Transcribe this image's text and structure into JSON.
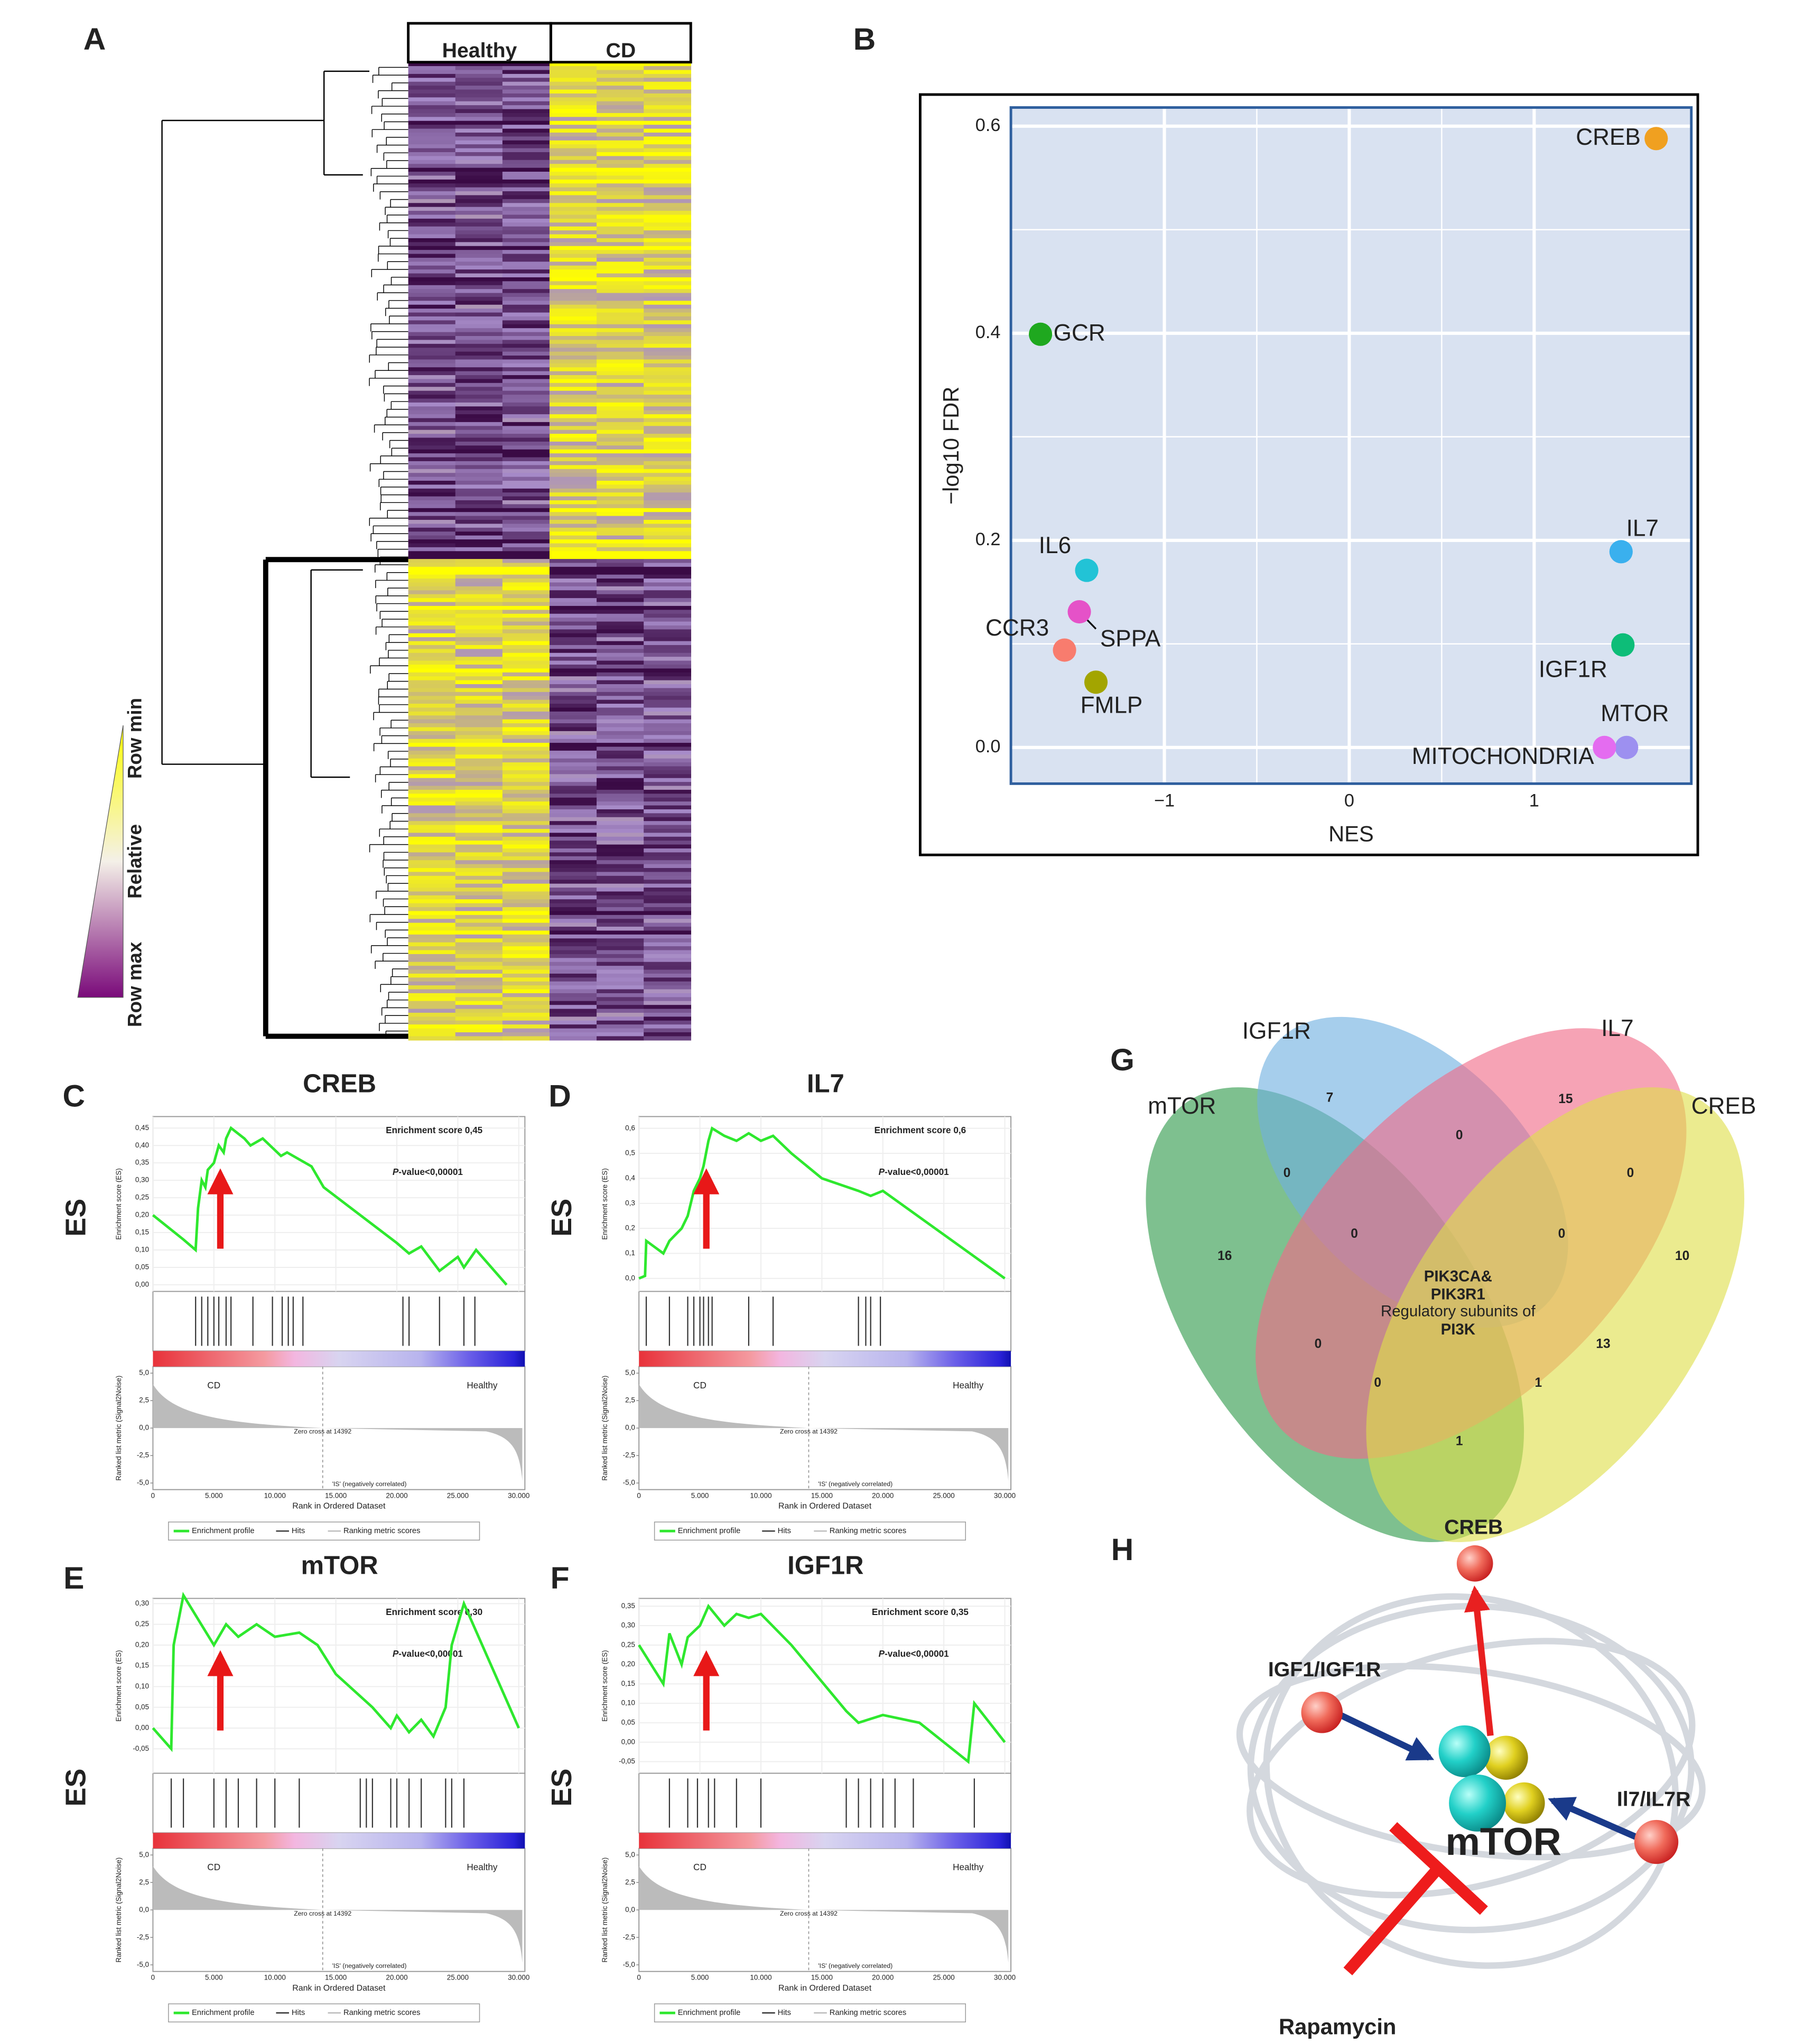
{
  "chart_data": [
    {
      "type": "heatmap",
      "panel": "A",
      "columns": [
        "Healthy",
        "CD"
      ],
      "legend": [
        "Row min",
        "Relative",
        "Row max"
      ]
    },
    {
      "type": "scatter",
      "panel": "B",
      "x_label": "NES",
      "y_label": "−log10 FDR",
      "xlim": [
        -1.83,
        1.85
      ],
      "ylim": [
        -0.035,
        0.618
      ],
      "xticks": [
        {
          "value": -1,
          "label": "−1"
        },
        0,
        1
      ],
      "yticks": [
        {
          "value": 0,
          "label": "0.0"
        },
        0.2,
        0.4,
        0.6
      ],
      "grid": true,
      "labels": [
        "CREB",
        "GCR",
        "IL6",
        "SPPA",
        "CCR3",
        "FMLP",
        "IL7",
        "IGF1R",
        "MTOR",
        "MITOCHONDRIA"
      ],
      "x": [
        1.66,
        -1.67,
        -1.42,
        -1.46,
        -1.54,
        -1.37,
        1.47,
        1.48,
        1.5,
        1.38
      ],
      "values": [
        0.588,
        0.399,
        0.171,
        0.131,
        0.094,
        0.063,
        0.189,
        0.099,
        0.0,
        0.0
      ],
      "colors": [
        "#f0a020",
        "#1fa81f",
        "#22c3d6",
        "#e552c8",
        "#f87c6e",
        "#a3a500",
        "#3ab0ee",
        "#0dbd78",
        "#9d90f0",
        "#e46cf0"
      ]
    },
    {
      "type": "gsea",
      "panel": "C",
      "title": "CREB",
      "side_label": "ES",
      "score_label": "Enrichment score 0,45",
      "p_italic": "P",
      "p_rest": "-value<0,00001",
      "y_label": "Enrichment score (ES)",
      "y2_label": "Ranked list metric (Signal2Noise)",
      "x_label": "Rank in Ordered Dataset",
      "xlim": [
        0,
        30500
      ],
      "xticks": [
        0,
        {
          "value": 5000,
          "label": "5.000"
        },
        {
          "value": 10000,
          "label": "10.000"
        },
        {
          "value": 15000,
          "label": "15.000"
        },
        {
          "value": 20000,
          "label": "20.000"
        },
        {
          "value": 25000,
          "label": "25.000"
        },
        {
          "value": 30000,
          "label": "30.000"
        }
      ],
      "ylim": [
        -0.019,
        0.483
      ],
      "yticks": [
        {
          "value": 0,
          "label": "0,00"
        },
        {
          "value": 0.05,
          "label": "0,05"
        },
        {
          "value": 0.1,
          "label": "0,10"
        },
        {
          "value": 0.15,
          "label": "0,15"
        },
        {
          "value": 0.2,
          "label": "0,20"
        },
        {
          "value": 0.25,
          "label": "0,25"
        },
        {
          "value": 0.3,
          "label": "0,30"
        },
        {
          "value": 0.35,
          "label": "0,35"
        },
        {
          "value": 0.4,
          "label": "0,40"
        },
        {
          "value": 0.45,
          "label": "0,45"
        }
      ],
      "y2lim": [
        -5.6,
        5.6
      ],
      "y2ticks": [
        {
          "value": 5,
          "label": "5,0"
        },
        {
          "value": 2.5,
          "label": "2,5"
        },
        {
          "value": 0,
          "label": "0,0"
        },
        {
          "value": -2.5,
          "label": "-2,5"
        },
        {
          "value": -5,
          "label": "-5,0"
        }
      ],
      "phenotypes": [
        "CD",
        "Healthy"
      ],
      "zero_cross": "Zero cross at 14392",
      "correlation": "'IS' (negatively correlated)",
      "series": [
        {
          "name": "Enrichment profile",
          "color": "#2ee82e",
          "x": [
            0,
            2500,
            3500,
            3700,
            4000,
            4300,
            4500,
            5000,
            5400,
            5800,
            6000,
            6400,
            7500,
            8000,
            9000,
            10500,
            11000,
            12000,
            13000,
            14000,
            20000,
            21000,
            22000,
            23500,
            25000,
            25500,
            26500,
            29000
          ],
          "values": [
            0.2,
            0.13,
            0.1,
            0.22,
            0.3,
            0.28,
            0.33,
            0.35,
            0.4,
            0.38,
            0.42,
            0.45,
            0.42,
            0.4,
            0.42,
            0.37,
            0.38,
            0.36,
            0.34,
            0.28,
            0.12,
            0.09,
            0.11,
            0.04,
            0.08,
            0.05,
            0.1,
            0.0
          ]
        }
      ],
      "hits": [
        3500,
        4000,
        4500,
        5000,
        5400,
        6000,
        6400,
        8200,
        9800,
        10600,
        11100,
        11500,
        12300,
        20500,
        21000,
        23500,
        25500,
        26400
      ],
      "legend_extra": [
        "Hits",
        "Ranking metric scores"
      ]
    },
    {
      "type": "gsea",
      "panel": "D",
      "title": "IL7",
      "side_label": "ES",
      "score_label": "Enrichment score 0,6",
      "p_italic": "P",
      "p_rest": "-value<0,00001",
      "y_label": "Enrichment score (ES)",
      "y2_label": "Ranked list metric (Signal2Noise)",
      "x_label": "Rank in Ordered Dataset",
      "xlim": [
        0,
        30500
      ],
      "xticks": [
        0,
        {
          "value": 5000,
          "label": "5.000"
        },
        {
          "value": 10000,
          "label": "10.000"
        },
        {
          "value": 15000,
          "label": "15.000"
        },
        {
          "value": 20000,
          "label": "20.000"
        },
        {
          "value": 25000,
          "label": "25.000"
        },
        {
          "value": 30000,
          "label": "30.000"
        }
      ],
      "ylim": [
        -0.052,
        0.647
      ],
      "yticks": [
        {
          "value": 0,
          "label": "0,0"
        },
        {
          "value": 0.1,
          "label": "0,1"
        },
        {
          "value": 0.2,
          "label": "0,2"
        },
        {
          "value": 0.3,
          "label": "0,3"
        },
        {
          "value": 0.4,
          "label": "0,4"
        },
        {
          "value": 0.5,
          "label": "0,5"
        },
        {
          "value": 0.6,
          "label": "0,6"
        }
      ],
      "y2lim": [
        -5.6,
        5.6
      ],
      "y2ticks": [
        {
          "value": 5,
          "label": "5,0"
        },
        {
          "value": 2.5,
          "label": "2,5"
        },
        {
          "value": 0,
          "label": "0,0"
        },
        {
          "value": -2.5,
          "label": "-2,5"
        },
        {
          "value": -5,
          "label": "-5,0"
        }
      ],
      "phenotypes": [
        "CD",
        "Healthy"
      ],
      "zero_cross": "Zero cross at 14392",
      "correlation": "'IS' (negatively correlated)",
      "series": [
        {
          "name": "Enrichment profile",
          "color": "#2ee82e",
          "x": [
            0,
            500,
            600,
            2000,
            2500,
            3500,
            4000,
            4500,
            5000,
            5300,
            5700,
            6000,
            7000,
            8000,
            9000,
            10000,
            11000,
            12500,
            15000,
            18000,
            19000,
            20000,
            30000
          ],
          "values": [
            0.0,
            0.01,
            0.15,
            0.1,
            0.15,
            0.2,
            0.25,
            0.35,
            0.4,
            0.45,
            0.55,
            0.6,
            0.57,
            0.55,
            0.58,
            0.55,
            0.57,
            0.5,
            0.4,
            0.35,
            0.33,
            0.35,
            0.0
          ]
        }
      ],
      "hits": [
        600,
        2500,
        4000,
        4500,
        5000,
        5300,
        5700,
        6000,
        9000,
        11000,
        18000,
        18600,
        19000,
        19800
      ],
      "legend_extra": [
        "Hits",
        "Ranking metric scores"
      ]
    },
    {
      "type": "gsea",
      "panel": "E",
      "title": "mTOR",
      "side_label": "ES",
      "score_label": "Enrichment score 0,30",
      "p_italic": "P",
      "p_rest": "-value<0,00001",
      "y_label": "Enrichment score (ES)",
      "y2_label": "Ranked list metric (Signal2Noise)",
      "x_label": "Rank in Ordered Dataset",
      "xlim": [
        0,
        30500
      ],
      "xticks": [
        0,
        {
          "value": 5000,
          "label": "5.000"
        },
        {
          "value": 10000,
          "label": "10.000"
        },
        {
          "value": 15000,
          "label": "15.000"
        },
        {
          "value": 20000,
          "label": "20.000"
        },
        {
          "value": 25000,
          "label": "25.000"
        },
        {
          "value": 30000,
          "label": "30.000"
        }
      ],
      "ylim": [
        -0.109,
        0.3125
      ],
      "yticks": [
        {
          "value": -0.05,
          "label": "-0,05"
        },
        {
          "value": 0,
          "label": "0,00"
        },
        {
          "value": 0.05,
          "label": "0,05"
        },
        {
          "value": 0.1,
          "label": "0,10"
        },
        {
          "value": 0.15,
          "label": "0,15"
        },
        {
          "value": 0.2,
          "label": "0,20"
        },
        {
          "value": 0.25,
          "label": "0,25"
        },
        {
          "value": 0.3,
          "label": "0,30"
        }
      ],
      "y2lim": [
        -5.6,
        5.6
      ],
      "y2ticks": [
        {
          "value": 5,
          "label": "5,0"
        },
        {
          "value": 2.5,
          "label": "2,5"
        },
        {
          "value": 0,
          "label": "0,0"
        },
        {
          "value": -2.5,
          "label": "-2,5"
        },
        {
          "value": -5,
          "label": "-5,0"
        }
      ],
      "phenotypes": [
        "CD",
        "Healthy"
      ],
      "zero_cross": "Zero cross at 14392",
      "correlation": "'IS' (negatively correlated)",
      "series": [
        {
          "name": "Enrichment profile",
          "color": "#2ee82e",
          "x": [
            0,
            1500,
            1700,
            2500,
            5000,
            6000,
            7000,
            8500,
            10000,
            12000,
            13500,
            15000,
            18000,
            19500,
            20000,
            21000,
            22000,
            23000,
            24000,
            24500,
            25500,
            30000
          ],
          "values": [
            0.0,
            -0.05,
            0.2,
            0.32,
            0.2,
            0.25,
            0.22,
            0.25,
            0.22,
            0.23,
            0.2,
            0.13,
            0.05,
            0.0,
            0.03,
            -0.01,
            0.02,
            -0.02,
            0.05,
            0.2,
            0.3,
            0.0
          ]
        }
      ],
      "hits": [
        1500,
        2500,
        5000,
        6000,
        7000,
        8500,
        10000,
        12000,
        17000,
        17500,
        18000,
        19500,
        20000,
        21000,
        22000,
        24000,
        24500,
        25500
      ],
      "legend_extra": [
        "Hits",
        "Ranking metric scores"
      ]
    },
    {
      "type": "gsea",
      "panel": "F",
      "title": "IGF1R",
      "side_label": "ES",
      "score_label": "Enrichment score 0,35",
      "p_italic": "P",
      "p_rest": "-value<0,00001",
      "y_label": "Enrichment score (ES)",
      "y2_label": "Ranked list metric (Signal2Noise)",
      "x_label": "Rank in Ordered Dataset",
      "xlim": [
        0,
        30500
      ],
      "xticks": [
        0,
        {
          "value": 5000,
          "label": "5.000"
        },
        {
          "value": 10000,
          "label": "10.000"
        },
        {
          "value": 15000,
          "label": "15.000"
        },
        {
          "value": 20000,
          "label": "20.000"
        },
        {
          "value": 25000,
          "label": "25.000"
        },
        {
          "value": 30000,
          "label": "30.000"
        }
      ],
      "ylim": [
        -0.08,
        0.37
      ],
      "yticks": [
        {
          "value": -0.05,
          "label": "-0,05"
        },
        {
          "value": 0,
          "label": "0,00"
        },
        {
          "value": 0.05,
          "label": "0,05"
        },
        {
          "value": 0.1,
          "label": "0,10"
        },
        {
          "value": 0.15,
          "label": "0,15"
        },
        {
          "value": 0.2,
          "label": "0,20"
        },
        {
          "value": 0.25,
          "label": "0,25"
        },
        {
          "value": 0.3,
          "label": "0,30"
        },
        {
          "value": 0.35,
          "label": "0,35"
        }
      ],
      "y2lim": [
        -5.6,
        5.6
      ],
      "y2ticks": [
        {
          "value": 5,
          "label": "5,0"
        },
        {
          "value": 2.5,
          "label": "2,5"
        },
        {
          "value": 0,
          "label": "0,0"
        },
        {
          "value": -2.5,
          "label": "-2,5"
        },
        {
          "value": -5,
          "label": "-5,0"
        }
      ],
      "phenotypes": [
        "CD",
        "Healthy"
      ],
      "zero_cross": "Zero cross at 14392",
      "correlation": "'IS' (negatively correlated)",
      "series": [
        {
          "name": "Enrichment profile",
          "color": "#2ee82e",
          "x": [
            0,
            2000,
            2500,
            3500,
            4000,
            5000,
            5700,
            7000,
            8000,
            9000,
            10000,
            12500,
            17000,
            18000,
            20000,
            23000,
            27000,
            27500,
            30000
          ],
          "values": [
            0.25,
            0.15,
            0.28,
            0.2,
            0.27,
            0.3,
            0.35,
            0.3,
            0.33,
            0.32,
            0.33,
            0.25,
            0.08,
            0.05,
            0.07,
            0.05,
            -0.05,
            0.1,
            0.0
          ]
        }
      ],
      "hits": [
        2500,
        4000,
        4800,
        5700,
        6200,
        8000,
        10000,
        17000,
        18000,
        19000,
        20000,
        21000,
        22500,
        27500
      ],
      "legend_extra": [
        "Hits",
        "Ranking metric scores"
      ]
    }
  ],
  "venn": {
    "panel": "G",
    "sets": [
      "IGF1R",
      "IL7",
      "mTOR",
      "CREB"
    ],
    "counts": [
      7,
      15,
      0,
      0,
      0,
      16,
      0,
      0,
      10,
      0,
      13,
      0,
      1,
      1
    ],
    "center": [
      "PIK3CA&",
      "PIK3R1",
      "Regulatory subunits of",
      "PI3K"
    ]
  },
  "diagram": {
    "panel": "H",
    "nodes": [
      "CREB",
      "IGF1/IGF1R",
      "Il7/IL7R"
    ],
    "center": "mTOR",
    "inhibitor": "Rapamycin"
  }
}
